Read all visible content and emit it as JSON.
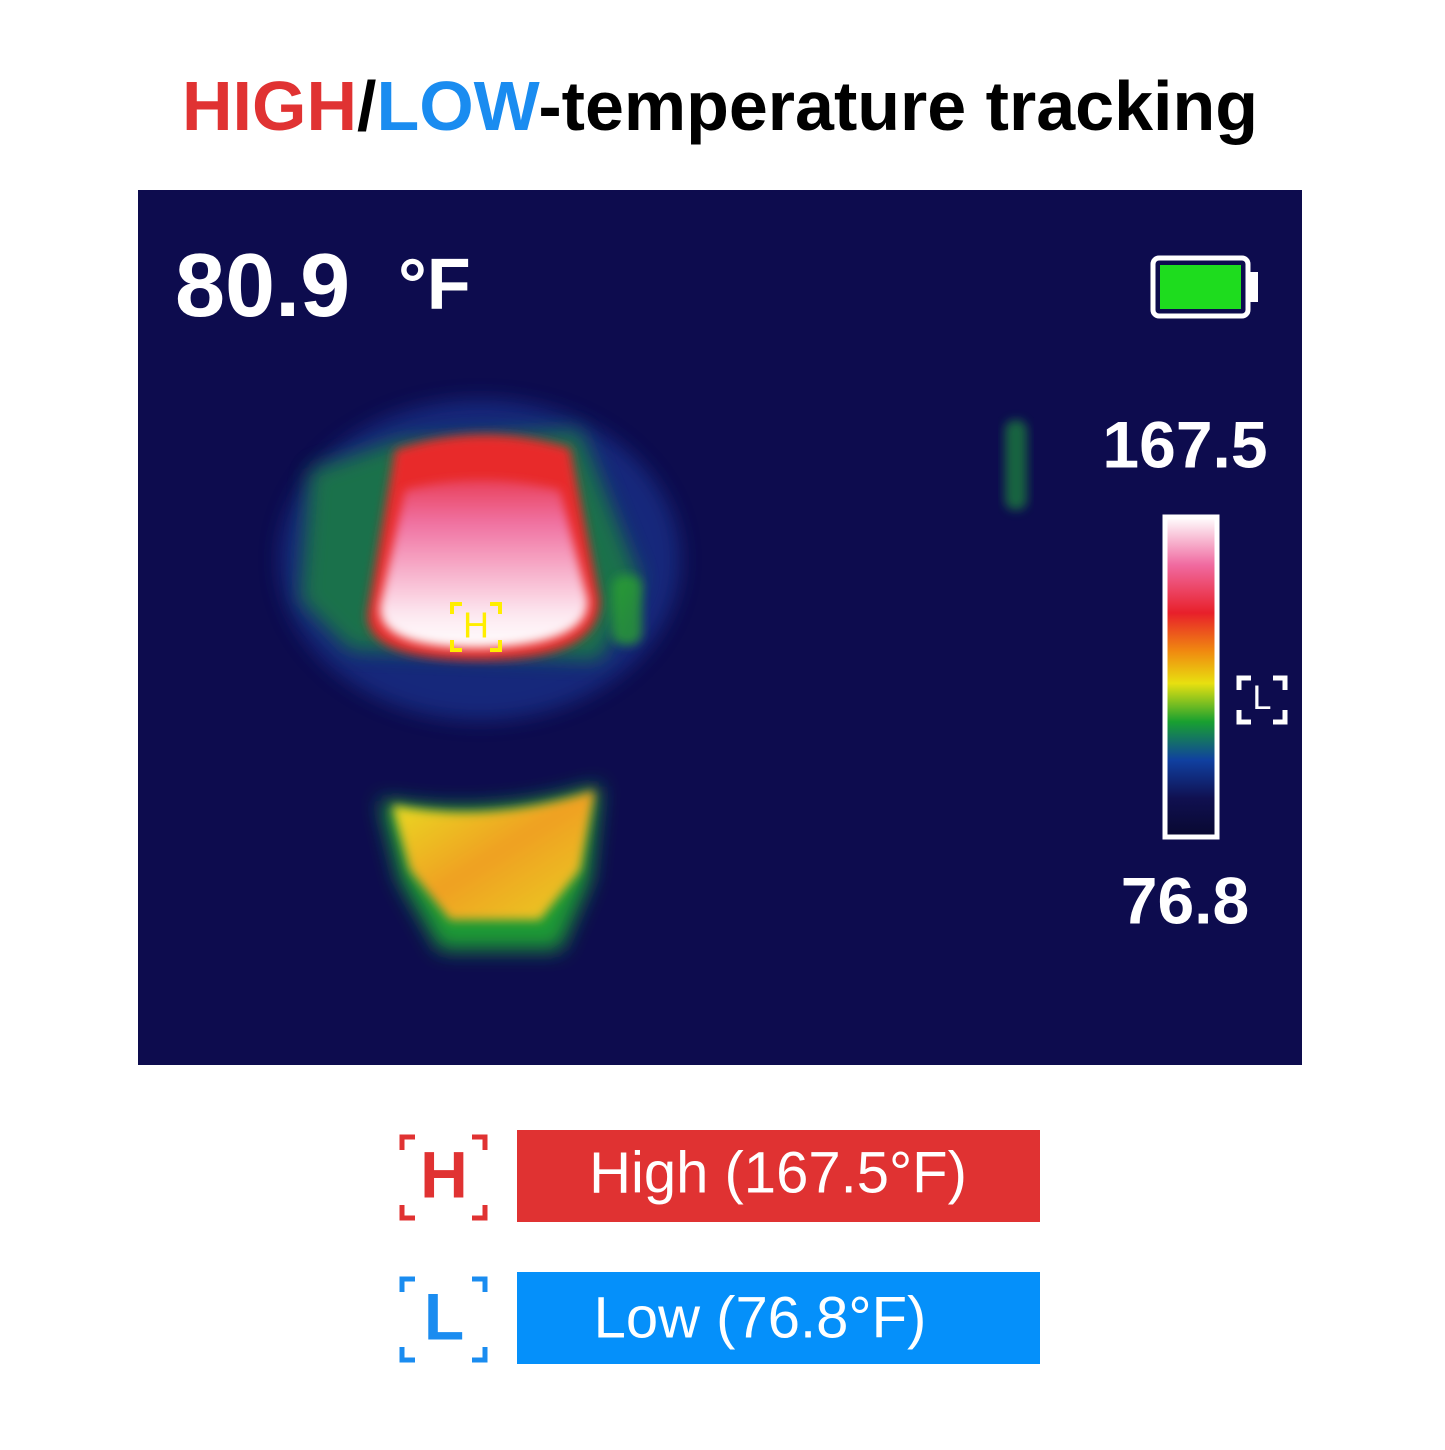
{
  "title": {
    "high": "HIGH",
    "slash": "/",
    "low": "LOW",
    "rest": "-temperature tracking"
  },
  "screen": {
    "reading": "80.9",
    "unit": "°F",
    "scale_max": "167.5",
    "scale_min": "76.8",
    "high_marker": "H",
    "low_marker": "L"
  },
  "legend": [
    {
      "icon": "H",
      "label": "High (167.5°F)"
    },
    {
      "icon": "L",
      "label": "Low (76.8°F)"
    }
  ]
}
